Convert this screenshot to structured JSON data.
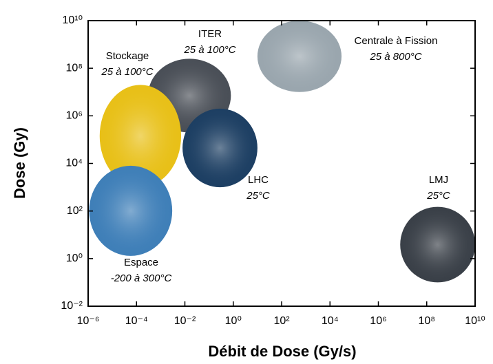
{
  "chart_data": {
    "type": "region",
    "x_label": "Débit de Dose (Gy/s)",
    "y_label": "Dose (Gy)",
    "log_x": true,
    "log_y": true,
    "xlim": [
      1e-06,
      10000000000.0
    ],
    "ylim": [
      0.01,
      10000000000.0
    ],
    "xticks": [
      {
        "value": 1e-06,
        "label": "10⁻⁶"
      },
      {
        "value": 0.0001,
        "label": "10⁻⁴"
      },
      {
        "value": 0.01,
        "label": "10⁻²"
      },
      {
        "value": 1,
        "label": "10⁰"
      },
      {
        "value": 100.0,
        "label": "10²"
      },
      {
        "value": 10000.0,
        "label": "10⁴"
      },
      {
        "value": 1000000.0,
        "label": "10⁶"
      },
      {
        "value": 100000000.0,
        "label": "10⁸"
      },
      {
        "value": 10000000000.0,
        "label": "10¹⁰"
      }
    ],
    "yticks": [
      {
        "value": 0.01,
        "label": "10⁻²"
      },
      {
        "value": 1,
        "label": "10⁰"
      },
      {
        "value": 100.0,
        "label": "10²"
      },
      {
        "value": 10000.0,
        "label": "10⁴"
      },
      {
        "value": 1000000.0,
        "label": "10⁶"
      },
      {
        "value": 100000000.0,
        "label": "10⁸"
      },
      {
        "value": 10000000000.0,
        "label": "10¹⁰"
      }
    ],
    "regions": [
      {
        "name": "Centrale à Fission",
        "temperature": "25 à 800°C",
        "color": "#9aa6ae",
        "xlim": [
          10,
          30000.0
        ],
        "ylim": [
          10000000.0,
          10000000000.0
        ]
      },
      {
        "name": "ITER",
        "temperature": "25 à 100°C",
        "color": "#4a4f57",
        "xlim": [
          0.0003,
          0.8
        ],
        "ylim": [
          200000.0,
          250000000.0
        ]
      },
      {
        "name": "Stockage",
        "temperature": "25 à 100°C",
        "color": "#e8c018",
        "xlim": [
          3e-06,
          0.007
        ],
        "ylim": [
          1000.0,
          20000000.0
        ]
      },
      {
        "name": "LHC",
        "temperature": "25°C",
        "color": "#1d3f63",
        "xlim": [
          0.008,
          10
        ],
        "ylim": [
          1000.0,
          2000000.0
        ]
      },
      {
        "name": "Espace",
        "temperature": "-200 à 300°C",
        "color": "#3f7fb8",
        "xlim": [
          1.1e-06,
          0.003
        ],
        "ylim": [
          1.3,
          8000.0
        ]
      },
      {
        "name": "LMJ",
        "temperature": "25°C",
        "color": "#3a4048",
        "xlim": [
          8000000.0,
          10000000000.0
        ],
        "ylim": [
          0.1,
          150
        ]
      }
    ]
  }
}
